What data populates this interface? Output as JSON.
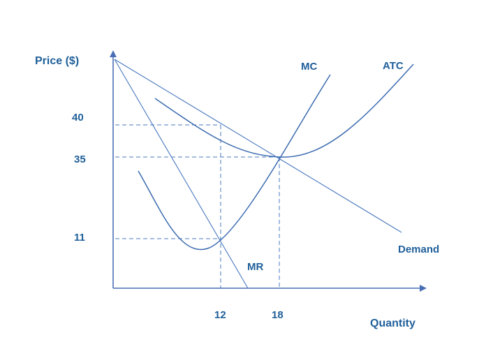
{
  "axes": {
    "y_label": "Price ($)",
    "x_label": "Quantity"
  },
  "y_ticks": [
    {
      "label": "40",
      "value": 40
    },
    {
      "label": "35",
      "value": 35
    },
    {
      "label": "11",
      "value": 11
    }
  ],
  "x_ticks": [
    {
      "label": "12",
      "value": 12
    },
    {
      "label": "18",
      "value": 18
    }
  ],
  "curves": {
    "mc": "MC",
    "atc": "ATC",
    "demand": "Demand",
    "mr": "MR"
  },
  "colors": {
    "label": "#1f5f9a",
    "line": "#3b6bb0",
    "axis": "#4a6fb5"
  }
}
